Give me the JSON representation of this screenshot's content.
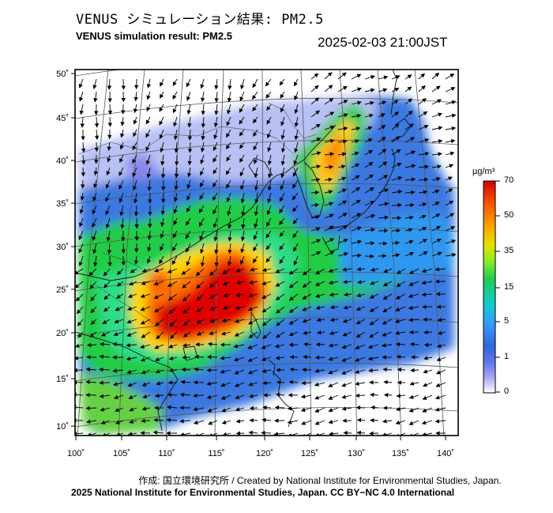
{
  "header": {
    "title_jp": "VENUS シミュレーション結果: PM2.5",
    "title_en": "VENUS simulation result: PM2.5",
    "timestamp": "2025-02-03 21:00JST"
  },
  "map": {
    "lon_ticks": [
      "100˚",
      "105˚",
      "110˚",
      "115˚",
      "120˚",
      "125˚",
      "130˚",
      "135˚",
      "140˚"
    ],
    "lat_ticks": [
      "50˚",
      "45˚",
      "40˚",
      "35˚",
      "30˚",
      "25˚",
      "20˚",
      "15˚",
      "10˚"
    ],
    "lon_range": [
      100,
      142
    ],
    "lat_range": [
      9,
      51
    ],
    "colors": {
      "background": "#ffffff",
      "coast": "#1a1a1a",
      "grid": "#555555",
      "arrow": "#000000"
    }
  },
  "colorbar": {
    "unit": "µg/m³",
    "labels": [
      "70",
      "50",
      "35",
      "15",
      "5",
      "1",
      "0"
    ],
    "stops": [
      "#d40000",
      "#f04000",
      "#ff9900",
      "#e8e000",
      "#88ee22",
      "#22cc55",
      "#11cccc",
      "#3399ff",
      "#3366dd",
      "#6677ee",
      "#aaaaf0",
      "#ffffff"
    ]
  },
  "footer": {
    "credit_jp": "作成: 国立環境研究所 / Created by National Institute for Environmental Studies, Japan.",
    "copyright": "2025 National Institute for Environmental Studies, Japan. CC BY−NC 4.0 International"
  }
}
